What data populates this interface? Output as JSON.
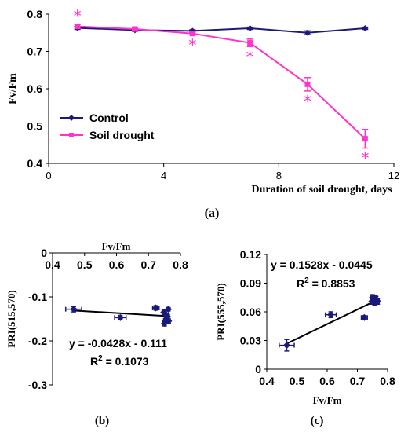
{
  "panel_labels": {
    "a": "(a)",
    "b": "(b)",
    "c": "(c)"
  },
  "colors": {
    "control": "#1a1a7a",
    "drought": "#ff33cc",
    "scatter": "#1a1a7a",
    "axis": "#000000"
  },
  "chart_data": [
    {
      "type": "line",
      "panel": "a",
      "xlabel": "Duration of soil drought, days",
      "ylabel": "Fv/Fm",
      "xlim": [
        0,
        12
      ],
      "ylim": [
        0.4,
        0.8
      ],
      "xticks": [
        "0",
        "4",
        "8",
        "12"
      ],
      "yticks": [
        "0.4",
        "0.5",
        "0.6",
        "0.7",
        "0.8"
      ],
      "legend": "center-left",
      "x": [
        1,
        3,
        5,
        7,
        9,
        11
      ],
      "series": [
        {
          "name": "Control",
          "values": [
            0.763,
            0.757,
            0.755,
            0.762,
            0.75,
            0.762
          ],
          "err": [
            0.004,
            0.003,
            0.003,
            0.003,
            0.005,
            0.003
          ],
          "marker": "diamond"
        },
        {
          "name": "Soil drought",
          "values": [
            0.767,
            0.76,
            0.748,
            0.723,
            0.612,
            0.466
          ],
          "err": [
            0.005,
            0.004,
            0.004,
            0.01,
            0.018,
            0.025
          ],
          "marker": "square"
        }
      ],
      "significance_marks": [
        {
          "x": 1,
          "symbol": "*",
          "position": "above"
        },
        {
          "x": 5,
          "symbol": "*",
          "position": "below"
        },
        {
          "x": 7,
          "symbol": "*",
          "position": "below"
        },
        {
          "x": 9,
          "symbol": "*",
          "position": "below"
        },
        {
          "x": 11,
          "symbol": "*",
          "position": "below"
        }
      ]
    },
    {
      "type": "scatter",
      "panel": "b",
      "xlabel": "Fv/Fm",
      "ylabel": "PRI(515,570)",
      "xlim": [
        0.4,
        0.8
      ],
      "ylim": [
        -0.3,
        0
      ],
      "xticks": [
        "0.4",
        "0.5",
        "0.6",
        "0.7",
        "0.8"
      ],
      "yticks": [
        "0",
        "-0.1",
        "-0.2",
        "-0.3"
      ],
      "x_axis_position": "top",
      "points": [
        {
          "x": 0.466,
          "y": -0.128,
          "xerr": 0.025,
          "yerr": 0.006
        },
        {
          "x": 0.612,
          "y": -0.147,
          "xerr": 0.018,
          "yerr": 0.005
        },
        {
          "x": 0.723,
          "y": -0.125,
          "xerr": 0.01,
          "yerr": 0.005
        },
        {
          "x": 0.748,
          "y": -0.135,
          "xerr": 0.004,
          "yerr": 0.005
        },
        {
          "x": 0.75,
          "y": -0.16,
          "xerr": 0.005,
          "yerr": 0.006
        },
        {
          "x": 0.755,
          "y": -0.15,
          "xerr": 0.003,
          "yerr": 0.005
        },
        {
          "x": 0.757,
          "y": -0.142,
          "xerr": 0.003,
          "yerr": 0.005
        },
        {
          "x": 0.76,
          "y": -0.145,
          "xerr": 0.004,
          "yerr": 0.005
        },
        {
          "x": 0.762,
          "y": -0.128,
          "xerr": 0.003,
          "yerr": 0.004
        },
        {
          "x": 0.763,
          "y": -0.155,
          "xerr": 0.004,
          "yerr": 0.005
        }
      ],
      "trendline": {
        "slope": -0.0428,
        "intercept": -0.111
      },
      "equation": "y = -0.0428x - 0.111",
      "r2_prefix": "R",
      "r2_sup": "2",
      "r2_value": " = 0.1073"
    },
    {
      "type": "scatter",
      "panel": "c",
      "xlabel": "Fv/Fm",
      "ylabel": "PRI(555,570)",
      "xlim": [
        0.4,
        0.8
      ],
      "ylim": [
        0,
        0.12
      ],
      "xticks": [
        "0.4",
        "0.5",
        "0.6",
        "0.7",
        "0.8"
      ],
      "yticks": [
        "0",
        "0.03",
        "0.06",
        "0.09",
        "0.12"
      ],
      "points": [
        {
          "x": 0.466,
          "y": 0.025,
          "xerr": 0.025,
          "yerr": 0.006
        },
        {
          "x": 0.612,
          "y": 0.057,
          "xerr": 0.018,
          "yerr": 0.003
        },
        {
          "x": 0.723,
          "y": 0.054,
          "xerr": 0.01,
          "yerr": 0.002
        },
        {
          "x": 0.748,
          "y": 0.071,
          "xerr": 0.004,
          "yerr": 0.003
        },
        {
          "x": 0.75,
          "y": 0.075,
          "xerr": 0.005,
          "yerr": 0.003
        },
        {
          "x": 0.755,
          "y": 0.072,
          "xerr": 0.003,
          "yerr": 0.003
        },
        {
          "x": 0.757,
          "y": 0.07,
          "xerr": 0.003,
          "yerr": 0.003
        },
        {
          "x": 0.76,
          "y": 0.074,
          "xerr": 0.004,
          "yerr": 0.003
        },
        {
          "x": 0.762,
          "y": 0.073,
          "xerr": 0.003,
          "yerr": 0.003
        },
        {
          "x": 0.767,
          "y": 0.071,
          "xerr": 0.005,
          "yerr": 0.003
        }
      ],
      "trendline": {
        "slope": 0.1528,
        "intercept": -0.0445
      },
      "equation": "y = 0.1528x - 0.0445",
      "r2_prefix": "R",
      "r2_sup": "2",
      "r2_value": " = 0.8853"
    }
  ]
}
